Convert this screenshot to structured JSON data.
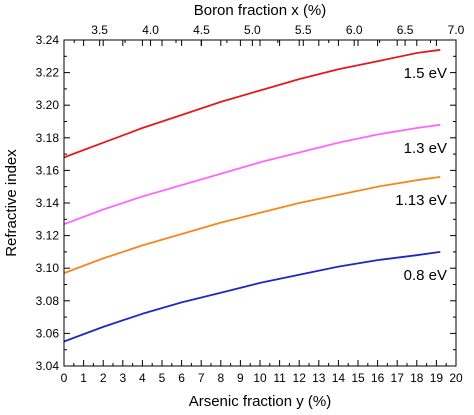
{
  "chart_data": {
    "type": "line",
    "xlabel": "Arsenic fraction y (%)",
    "x2label": "Boron fraction x (%)",
    "ylabel": "Refractive index",
    "xlim": [
      0,
      20
    ],
    "x2lim": [
      3.15,
      7.0
    ],
    "ylim": [
      3.04,
      3.24
    ],
    "xticks": [
      0,
      1,
      2,
      3,
      4,
      5,
      6,
      7,
      8,
      9,
      10,
      11,
      12,
      13,
      14,
      15,
      16,
      17,
      18,
      19,
      20
    ],
    "x2ticks": [
      "3.5",
      "4.0",
      "4.5",
      "5.0",
      "5.5",
      "6.0",
      "6.5",
      "7.0"
    ],
    "yticks": [
      "3.04",
      "3.06",
      "3.08",
      "3.10",
      "3.12",
      "3.14",
      "3.16",
      "3.18",
      "3.20",
      "3.22",
      "3.24"
    ],
    "grid": false,
    "series": [
      {
        "name": "1.5 eV",
        "color": "#e31a1c",
        "x": [
          0,
          2,
          4,
          6,
          8,
          10,
          12,
          14,
          16,
          18,
          19.2
        ],
        "y": [
          3.168,
          3.177,
          3.186,
          3.194,
          3.202,
          3.209,
          3.216,
          3.222,
          3.227,
          3.232,
          3.234
        ]
      },
      {
        "name": "1.3 eV",
        "color": "#ff66ff",
        "x": [
          0,
          2,
          4,
          6,
          8,
          10,
          12,
          14,
          16,
          18,
          19.2
        ],
        "y": [
          3.127,
          3.136,
          3.144,
          3.151,
          3.158,
          3.165,
          3.171,
          3.177,
          3.182,
          3.186,
          3.188
        ]
      },
      {
        "name": "1.13 eV",
        "color": "#f7861f",
        "x": [
          0,
          2,
          4,
          6,
          8,
          10,
          12,
          14,
          16,
          18,
          19.2
        ],
        "y": [
          3.097,
          3.106,
          3.114,
          3.121,
          3.128,
          3.134,
          3.14,
          3.145,
          3.15,
          3.154,
          3.156
        ]
      },
      {
        "name": "0.8 eV",
        "color": "#1f27c4",
        "x": [
          0,
          2,
          4,
          6,
          8,
          10,
          12,
          14,
          16,
          18,
          19.2
        ],
        "y": [
          3.055,
          3.064,
          3.072,
          3.079,
          3.085,
          3.091,
          3.096,
          3.101,
          3.105,
          3.108,
          3.11
        ]
      }
    ]
  }
}
